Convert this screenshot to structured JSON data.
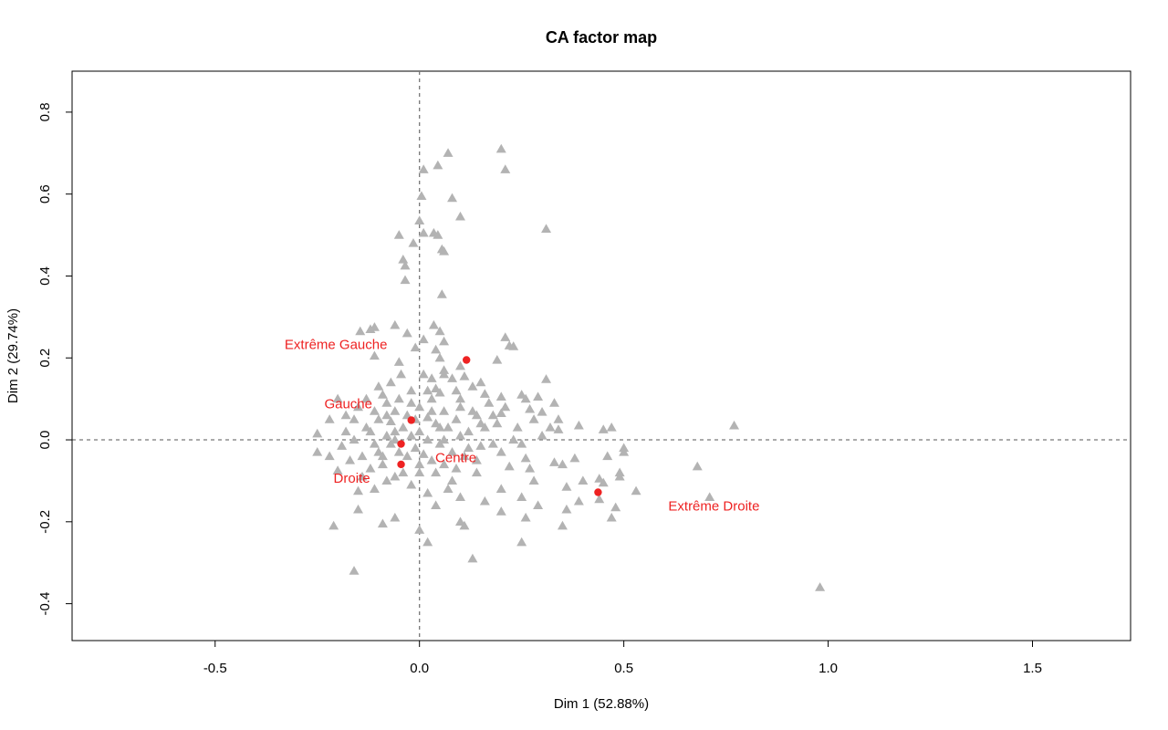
{
  "chart_data": {
    "type": "scatter",
    "title": "CA factor map",
    "xlabel": "Dim 1 (52.88%)",
    "ylabel": "Dim 2 (29.74%)",
    "xlim": [
      -0.85,
      1.74
    ],
    "ylim": [
      -0.49,
      0.9
    ],
    "x_ticks": [
      -0.5,
      0.0,
      0.5,
      1.0,
      1.5
    ],
    "x_tick_labels": [
      "-0.5",
      "0.0",
      "0.5",
      "1.0",
      "1.5"
    ],
    "y_ticks": [
      -0.4,
      -0.2,
      0.0,
      0.2,
      0.4,
      0.6,
      0.8
    ],
    "y_tick_labels": [
      "-0.4",
      "-0.2",
      "0.0",
      "0.2",
      "0.4",
      "0.6",
      "0.8"
    ],
    "reference_lines": {
      "x": 0,
      "y": 0,
      "style": "dashed"
    },
    "grid": false,
    "colors": {
      "rows": "#b3b3b3",
      "columns": "#ee2222"
    },
    "columns": [
      {
        "name": "Extrême Gauche",
        "x": 0.115,
        "y": 0.195
      },
      {
        "name": "Gauche",
        "x": -0.02,
        "y": 0.048
      },
      {
        "name": "Centre",
        "x": -0.045,
        "y": -0.01
      },
      {
        "name": "Droite",
        "x": -0.045,
        "y": -0.06
      },
      {
        "name": "Extrême Droite",
        "x": 0.437,
        "y": -0.128
      }
    ],
    "rows": [
      [
        0.2,
        0.71
      ],
      [
        0.07,
        0.7
      ],
      [
        0.045,
        0.67
      ],
      [
        0.21,
        0.66
      ],
      [
        0.01,
        0.66
      ],
      [
        0.005,
        0.595
      ],
      [
        0.08,
        0.59
      ],
      [
        0.1,
        0.545
      ],
      [
        0.0,
        0.535
      ],
      [
        0.31,
        0.515
      ],
      [
        0.01,
        0.505
      ],
      [
        0.035,
        0.505
      ],
      [
        -0.05,
        0.5
      ],
      [
        0.045,
        0.5
      ],
      [
        -0.015,
        0.48
      ],
      [
        0.055,
        0.465
      ],
      [
        0.06,
        0.46
      ],
      [
        -0.04,
        0.44
      ],
      [
        -0.035,
        0.425
      ],
      [
        -0.035,
        0.39
      ],
      [
        0.055,
        0.355
      ],
      [
        -0.11,
        0.275
      ],
      [
        -0.06,
        0.28
      ],
      [
        -0.145,
        0.265
      ],
      [
        0.035,
        0.28
      ],
      [
        -0.12,
        0.27
      ],
      [
        -0.03,
        0.26
      ],
      [
        0.05,
        0.265
      ],
      [
        0.01,
        0.245
      ],
      [
        0.21,
        0.25
      ],
      [
        0.06,
        0.24
      ],
      [
        0.22,
        0.23
      ],
      [
        0.23,
        0.228
      ],
      [
        -0.01,
        0.225
      ],
      [
        0.04,
        0.22
      ],
      [
        0.05,
        0.2
      ],
      [
        -0.11,
        0.205
      ],
      [
        0.19,
        0.195
      ],
      [
        -0.05,
        0.19
      ],
      [
        0.1,
        0.18
      ],
      [
        0.06,
        0.17
      ],
      [
        0.06,
        0.16
      ],
      [
        0.01,
        0.16
      ],
      [
        -0.045,
        0.16
      ],
      [
        0.11,
        0.155
      ],
      [
        0.08,
        0.15
      ],
      [
        0.03,
        0.15
      ],
      [
        -0.07,
        0.14
      ],
      [
        0.15,
        0.14
      ],
      [
        0.31,
        0.148
      ],
      [
        -0.1,
        0.13
      ],
      [
        0.13,
        0.13
      ],
      [
        0.04,
        0.125
      ],
      [
        -0.02,
        0.12
      ],
      [
        0.09,
        0.12
      ],
      [
        0.05,
        0.115
      ],
      [
        0.16,
        0.112
      ],
      [
        0.25,
        0.11
      ],
      [
        0.2,
        0.105
      ],
      [
        0.33,
        0.09
      ],
      [
        0.26,
        0.1
      ],
      [
        0.29,
        0.105
      ],
      [
        -0.13,
        0.1
      ],
      [
        -0.05,
        0.1
      ],
      [
        -0.2,
        0.1
      ],
      [
        -0.08,
        0.09
      ],
      [
        0.17,
        0.09
      ],
      [
        -0.15,
        0.08
      ],
      [
        0.0,
        0.08
      ],
      [
        0.1,
        0.08
      ],
      [
        0.21,
        0.08
      ],
      [
        0.27,
        0.075
      ],
      [
        -0.11,
        0.07
      ],
      [
        0.06,
        0.07
      ],
      [
        0.13,
        0.07
      ],
      [
        0.3,
        0.068
      ],
      [
        -0.03,
        0.06
      ],
      [
        -0.18,
        0.06
      ],
      [
        0.02,
        0.055
      ],
      [
        0.14,
        0.06
      ],
      [
        0.2,
        0.065
      ],
      [
        0.28,
        0.05
      ],
      [
        0.34,
        0.05
      ],
      [
        -0.22,
        0.05
      ],
      [
        0.09,
        0.05
      ],
      [
        -0.07,
        0.045
      ],
      [
        0.19,
        0.04
      ],
      [
        0.04,
        0.04
      ],
      [
        0.32,
        0.03
      ],
      [
        0.34,
        0.025
      ],
      [
        0.45,
        0.025
      ],
      [
        0.47,
        0.03
      ],
      [
        0.39,
        0.035
      ],
      [
        0.77,
        0.035
      ],
      [
        -0.25,
        0.015
      ],
      [
        -0.12,
        0.02
      ],
      [
        -0.16,
        0.0
      ],
      [
        0.1,
        0.01
      ],
      [
        0.23,
        0.0
      ],
      [
        0.3,
        0.01
      ],
      [
        -0.19,
        -0.015
      ],
      [
        0.05,
        -0.01
      ],
      [
        0.15,
        -0.015
      ],
      [
        0.25,
        -0.01
      ],
      [
        -0.25,
        -0.03
      ],
      [
        -0.1,
        -0.03
      ],
      [
        0.2,
        -0.03
      ],
      [
        0.5,
        -0.02
      ],
      [
        0.5,
        -0.03
      ],
      [
        0.46,
        -0.04
      ],
      [
        -0.22,
        -0.04
      ],
      [
        0.11,
        -0.04
      ],
      [
        0.26,
        -0.045
      ],
      [
        0.38,
        -0.045
      ],
      [
        -0.17,
        -0.05
      ],
      [
        0.06,
        -0.06
      ],
      [
        0.33,
        -0.055
      ],
      [
        0.35,
        -0.06
      ],
      [
        -0.09,
        -0.06
      ],
      [
        0.22,
        -0.065
      ],
      [
        0.68,
        -0.065
      ],
      [
        -0.2,
        -0.075
      ],
      [
        0.0,
        -0.08
      ],
      [
        0.14,
        -0.08
      ],
      [
        0.49,
        -0.08
      ],
      [
        0.49,
        -0.09
      ],
      [
        0.44,
        -0.095
      ],
      [
        0.45,
        -0.105
      ],
      [
        -0.06,
        -0.09
      ],
      [
        0.08,
        -0.1
      ],
      [
        0.28,
        -0.1
      ],
      [
        0.4,
        -0.1
      ],
      [
        0.07,
        -0.12
      ],
      [
        0.2,
        -0.12
      ],
      [
        0.36,
        -0.115
      ],
      [
        0.53,
        -0.125
      ],
      [
        0.71,
        -0.14
      ],
      [
        -0.15,
        -0.125
      ],
      [
        0.02,
        -0.13
      ],
      [
        0.1,
        -0.14
      ],
      [
        0.25,
        -0.14
      ],
      [
        0.16,
        -0.15
      ],
      [
        0.39,
        -0.15
      ],
      [
        0.44,
        -0.145
      ],
      [
        0.48,
        -0.165
      ],
      [
        0.29,
        -0.16
      ],
      [
        0.04,
        -0.16
      ],
      [
        -0.15,
        -0.17
      ],
      [
        0.2,
        -0.175
      ],
      [
        0.36,
        -0.17
      ],
      [
        0.47,
        -0.19
      ],
      [
        -0.06,
        -0.19
      ],
      [
        0.1,
        -0.2
      ],
      [
        0.11,
        -0.21
      ],
      [
        0.26,
        -0.19
      ],
      [
        0.35,
        -0.21
      ],
      [
        -0.09,
        -0.205
      ],
      [
        0.0,
        -0.22
      ],
      [
        -0.21,
        -0.21
      ],
      [
        0.02,
        -0.25
      ],
      [
        0.25,
        -0.25
      ],
      [
        0.13,
        -0.29
      ],
      [
        -0.16,
        -0.32
      ],
      [
        0.98,
        -0.36
      ],
      [
        -0.08,
        0.01
      ],
      [
        -0.06,
        0.02
      ],
      [
        -0.04,
        0.03
      ],
      [
        -0.02,
        0.01
      ],
      [
        0.0,
        0.02
      ],
      [
        0.02,
        0.0
      ],
      [
        -0.07,
        -0.01
      ],
      [
        -0.05,
        -0.03
      ],
      [
        -0.03,
        -0.04
      ],
      [
        -0.01,
        -0.02
      ],
      [
        0.01,
        -0.035
      ],
      [
        0.03,
        -0.05
      ],
      [
        -0.09,
        -0.04
      ],
      [
        -0.11,
        -0.01
      ],
      [
        -0.13,
        0.03
      ],
      [
        -0.1,
        0.05
      ],
      [
        -0.06,
        0.07
      ],
      [
        -0.02,
        0.09
      ],
      [
        0.03,
        0.1
      ],
      [
        0.07,
        0.03
      ],
      [
        0.08,
        -0.03
      ],
      [
        0.12,
        0.02
      ],
      [
        0.16,
        0.03
      ],
      [
        0.18,
        -0.01
      ],
      [
        0.14,
        -0.05
      ],
      [
        0.04,
        -0.08
      ],
      [
        -0.04,
        -0.08
      ],
      [
        -0.08,
        -0.1
      ],
      [
        -0.12,
        -0.07
      ],
      [
        -0.14,
        -0.04
      ],
      [
        -0.16,
        0.05
      ],
      [
        -0.09,
        0.11
      ],
      [
        0.02,
        0.12
      ],
      [
        0.1,
        0.1
      ],
      [
        0.15,
        0.04
      ],
      [
        0.09,
        -0.07
      ],
      [
        -0.02,
        -0.11
      ],
      [
        -0.11,
        -0.12
      ],
      [
        0.06,
        0.0
      ],
      [
        -0.01,
        0.05
      ],
      [
        0.05,
        0.03
      ],
      [
        -0.06,
        0.0
      ],
      [
        0.12,
        -0.02
      ],
      [
        0.0,
        -0.06
      ],
      [
        -0.08,
        0.06
      ],
      [
        0.03,
        0.07
      ],
      [
        0.24,
        0.03
      ],
      [
        0.27,
        -0.07
      ],
      [
        0.18,
        0.06
      ],
      [
        -0.18,
        0.02
      ],
      [
        -0.14,
        -0.09
      ]
    ]
  }
}
